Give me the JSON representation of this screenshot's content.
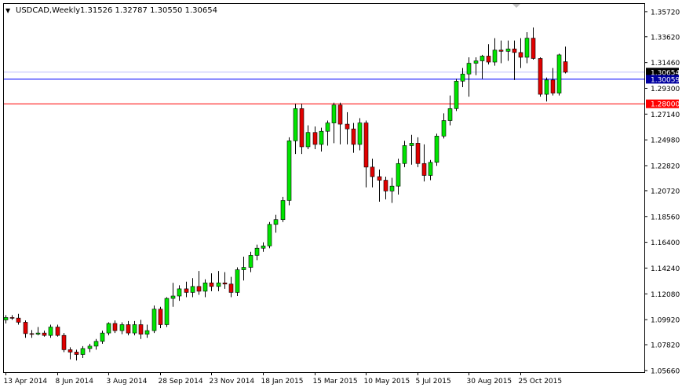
{
  "header": {
    "menu_arrow": "▼",
    "symbol": "USDCAD,Weekly",
    "ohlc": "1.31526 1.32787 1.30550 1.30654"
  },
  "colors": {
    "up": "#00e400",
    "down": "#e00000",
    "wick": "#000000",
    "frame": "#000000",
    "blue_line": "#0000ff",
    "red_line": "#ff0000",
    "bid_line": "#c0c0ff",
    "bid_badge": "#0000a0",
    "red_badge": "#ff0000"
  },
  "chart_data": {
    "type": "candlestick",
    "title": "USDCAD,Weekly",
    "ylim": [
      1.0552,
      1.3637
    ],
    "y_ticks": [
      "1.35720",
      "1.33620",
      "1.31460",
      "1.29300",
      "1.27140",
      "1.24980",
      "1.22820",
      "1.20720",
      "1.18560",
      "1.16400",
      "1.14240",
      "1.12080",
      "1.09920",
      "1.07820",
      "1.05660"
    ],
    "x_ticks": [
      "13 Apr 2014",
      "8 Jun 2014",
      "3 Aug 2014",
      "28 Sep 2014",
      "23 Nov 2014",
      "18 Jan 2015",
      "15 Mar 2015",
      "10 May 2015",
      "5 Jul 2015",
      "30 Aug 2015",
      "25 Oct 2015"
    ],
    "x_tick_bar_index": [
      0,
      8,
      16,
      24,
      32,
      40,
      48,
      56,
      64,
      72,
      80
    ],
    "horizontal_lines": [
      {
        "name": "support-1",
        "value": 1.3006,
        "label": "1.30059",
        "color": "blue"
      },
      {
        "name": "support-2",
        "value": 1.28,
        "label": "1.28000",
        "color": "red"
      }
    ],
    "bid": {
      "value": 1.30654,
      "label": "1.30654"
    },
    "candles": [
      {
        "o": 1.099,
        "h": 1.103,
        "l": 1.096,
        "c": 1.101
      },
      {
        "o": 1.101,
        "h": 1.103,
        "l": 1.099,
        "c": 1.1005
      },
      {
        "o": 1.1005,
        "h": 1.104,
        "l": 1.095,
        "c": 1.097
      },
      {
        "o": 1.097,
        "h": 1.0985,
        "l": 1.084,
        "c": 1.0875
      },
      {
        "o": 1.0875,
        "h": 1.0905,
        "l": 1.084,
        "c": 1.087
      },
      {
        "o": 1.087,
        "h": 1.093,
        "l": 1.086,
        "c": 1.088
      },
      {
        "o": 1.088,
        "h": 1.09,
        "l": 1.085,
        "c": 1.086
      },
      {
        "o": 1.086,
        "h": 1.095,
        "l": 1.084,
        "c": 1.093
      },
      {
        "o": 1.093,
        "h": 1.095,
        "l": 1.085,
        "c": 1.086
      },
      {
        "o": 1.086,
        "h": 1.088,
        "l": 1.072,
        "c": 1.074
      },
      {
        "o": 1.074,
        "h": 1.076,
        "l": 1.066,
        "c": 1.072
      },
      {
        "o": 1.072,
        "h": 1.074,
        "l": 1.065,
        "c": 1.07
      },
      {
        "o": 1.07,
        "h": 1.077,
        "l": 1.067,
        "c": 1.075
      },
      {
        "o": 1.075,
        "h": 1.079,
        "l": 1.072,
        "c": 1.077
      },
      {
        "o": 1.077,
        "h": 1.083,
        "l": 1.074,
        "c": 1.081
      },
      {
        "o": 1.081,
        "h": 1.09,
        "l": 1.079,
        "c": 1.088
      },
      {
        "o": 1.088,
        "h": 1.097,
        "l": 1.086,
        "c": 1.096
      },
      {
        "o": 1.096,
        "h": 1.0985,
        "l": 1.088,
        "c": 1.09
      },
      {
        "o": 1.09,
        "h": 1.097,
        "l": 1.087,
        "c": 1.095
      },
      {
        "o": 1.095,
        "h": 1.098,
        "l": 1.086,
        "c": 1.088
      },
      {
        "o": 1.088,
        "h": 1.098,
        "l": 1.086,
        "c": 1.095
      },
      {
        "o": 1.095,
        "h": 1.099,
        "l": 1.083,
        "c": 1.087
      },
      {
        "o": 1.087,
        "h": 1.095,
        "l": 1.084,
        "c": 1.09
      },
      {
        "o": 1.09,
        "h": 1.111,
        "l": 1.088,
        "c": 1.108
      },
      {
        "o": 1.108,
        "h": 1.11,
        "l": 1.092,
        "c": 1.095
      },
      {
        "o": 1.095,
        "h": 1.118,
        "l": 1.093,
        "c": 1.117
      },
      {
        "o": 1.117,
        "h": 1.13,
        "l": 1.11,
        "c": 1.119
      },
      {
        "o": 1.119,
        "h": 1.128,
        "l": 1.115,
        "c": 1.125
      },
      {
        "o": 1.125,
        "h": 1.131,
        "l": 1.118,
        "c": 1.122
      },
      {
        "o": 1.122,
        "h": 1.134,
        "l": 1.118,
        "c": 1.127
      },
      {
        "o": 1.127,
        "h": 1.14,
        "l": 1.12,
        "c": 1.123
      },
      {
        "o": 1.123,
        "h": 1.133,
        "l": 1.118,
        "c": 1.13
      },
      {
        "o": 1.13,
        "h": 1.138,
        "l": 1.123,
        "c": 1.127
      },
      {
        "o": 1.127,
        "h": 1.14,
        "l": 1.123,
        "c": 1.13
      },
      {
        "o": 1.13,
        "h": 1.139,
        "l": 1.125,
        "c": 1.129
      },
      {
        "o": 1.129,
        "h": 1.135,
        "l": 1.118,
        "c": 1.122
      },
      {
        "o": 1.122,
        "h": 1.143,
        "l": 1.119,
        "c": 1.141
      },
      {
        "o": 1.141,
        "h": 1.152,
        "l": 1.132,
        "c": 1.143
      },
      {
        "o": 1.143,
        "h": 1.156,
        "l": 1.139,
        "c": 1.153
      },
      {
        "o": 1.153,
        "h": 1.162,
        "l": 1.149,
        "c": 1.159
      },
      {
        "o": 1.159,
        "h": 1.164,
        "l": 1.156,
        "c": 1.161
      },
      {
        "o": 1.161,
        "h": 1.181,
        "l": 1.159,
        "c": 1.179
      },
      {
        "o": 1.179,
        "h": 1.187,
        "l": 1.172,
        "c": 1.183
      },
      {
        "o": 1.183,
        "h": 1.202,
        "l": 1.181,
        "c": 1.199
      },
      {
        "o": 1.199,
        "h": 1.252,
        "l": 1.195,
        "c": 1.249
      },
      {
        "o": 1.249,
        "h": 1.28,
        "l": 1.238,
        "c": 1.276
      },
      {
        "o": 1.276,
        "h": 1.28,
        "l": 1.238,
        "c": 1.244
      },
      {
        "o": 1.244,
        "h": 1.262,
        "l": 1.242,
        "c": 1.256
      },
      {
        "o": 1.256,
        "h": 1.261,
        "l": 1.242,
        "c": 1.246
      },
      {
        "o": 1.246,
        "h": 1.26,
        "l": 1.24,
        "c": 1.257
      },
      {
        "o": 1.257,
        "h": 1.266,
        "l": 1.245,
        "c": 1.264
      },
      {
        "o": 1.264,
        "h": 1.281,
        "l": 1.247,
        "c": 1.279
      },
      {
        "o": 1.279,
        "h": 1.281,
        "l": 1.246,
        "c": 1.263
      },
      {
        "o": 1.263,
        "h": 1.273,
        "l": 1.246,
        "c": 1.259
      },
      {
        "o": 1.259,
        "h": 1.264,
        "l": 1.239,
        "c": 1.246
      },
      {
        "o": 1.246,
        "h": 1.268,
        "l": 1.241,
        "c": 1.264
      },
      {
        "o": 1.264,
        "h": 1.266,
        "l": 1.21,
        "c": 1.227
      },
      {
        "o": 1.227,
        "h": 1.234,
        "l": 1.21,
        "c": 1.219
      },
      {
        "o": 1.219,
        "h": 1.225,
        "l": 1.198,
        "c": 1.216
      },
      {
        "o": 1.216,
        "h": 1.219,
        "l": 1.2,
        "c": 1.207
      },
      {
        "o": 1.207,
        "h": 1.218,
        "l": 1.197,
        "c": 1.211
      },
      {
        "o": 1.211,
        "h": 1.234,
        "l": 1.204,
        "c": 1.23
      },
      {
        "o": 1.23,
        "h": 1.249,
        "l": 1.227,
        "c": 1.245
      },
      {
        "o": 1.245,
        "h": 1.254,
        "l": 1.229,
        "c": 1.247
      },
      {
        "o": 1.247,
        "h": 1.252,
        "l": 1.227,
        "c": 1.23
      },
      {
        "o": 1.23,
        "h": 1.246,
        "l": 1.215,
        "c": 1.22
      },
      {
        "o": 1.22,
        "h": 1.233,
        "l": 1.216,
        "c": 1.231
      },
      {
        "o": 1.231,
        "h": 1.255,
        "l": 1.228,
        "c": 1.253
      },
      {
        "o": 1.253,
        "h": 1.272,
        "l": 1.251,
        "c": 1.266
      },
      {
        "o": 1.266,
        "h": 1.287,
        "l": 1.262,
        "c": 1.276
      },
      {
        "o": 1.276,
        "h": 1.301,
        "l": 1.274,
        "c": 1.299
      },
      {
        "o": 1.299,
        "h": 1.31,
        "l": 1.294,
        "c": 1.305
      },
      {
        "o": 1.305,
        "h": 1.319,
        "l": 1.286,
        "c": 1.314
      },
      {
        "o": 1.314,
        "h": 1.319,
        "l": 1.304,
        "c": 1.316
      },
      {
        "o": 1.316,
        "h": 1.321,
        "l": 1.301,
        "c": 1.32
      },
      {
        "o": 1.32,
        "h": 1.33,
        "l": 1.313,
        "c": 1.315
      },
      {
        "o": 1.315,
        "h": 1.335,
        "l": 1.312,
        "c": 1.325
      },
      {
        "o": 1.325,
        "h": 1.333,
        "l": 1.314,
        "c": 1.324
      },
      {
        "o": 1.324,
        "h": 1.333,
        "l": 1.316,
        "c": 1.326
      },
      {
        "o": 1.326,
        "h": 1.333,
        "l": 1.3,
        "c": 1.323
      },
      {
        "o": 1.323,
        "h": 1.335,
        "l": 1.31,
        "c": 1.319
      },
      {
        "o": 1.319,
        "h": 1.34,
        "l": 1.314,
        "c": 1.335
      },
      {
        "o": 1.335,
        "h": 1.344,
        "l": 1.317,
        "c": 1.318
      },
      {
        "o": 1.318,
        "h": 1.319,
        "l": 1.286,
        "c": 1.288
      },
      {
        "o": 1.288,
        "h": 1.302,
        "l": 1.282,
        "c": 1.3
      },
      {
        "o": 1.3,
        "h": 1.31,
        "l": 1.287,
        "c": 1.289
      },
      {
        "o": 1.289,
        "h": 1.322,
        "l": 1.287,
        "c": 1.321
      },
      {
        "o": 1.3153,
        "h": 1.3279,
        "l": 1.3055,
        "c": 1.3065
      }
    ]
  }
}
